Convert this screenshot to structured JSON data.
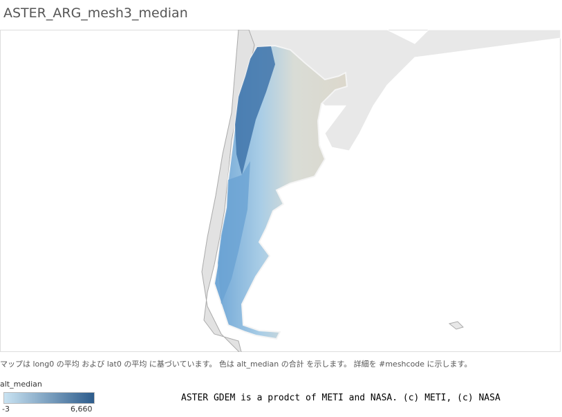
{
  "header": {
    "title": "ASTER_ARG_mesh3_median"
  },
  "map": {
    "caption": "マップは long0 の平均 および lat0 の平均 に基づいています。 色は alt_median の合計 を示します。 詳細を #meshcode に示します。"
  },
  "legend": {
    "title": "alt_median",
    "min_label": "-3",
    "max_label": "6,660",
    "colors": [
      "#c9e3f2",
      "#2d5c8c"
    ]
  },
  "credit": "ASTER GDEM is a prodct of METI and NASA. (c) METI, (c) NASA"
}
